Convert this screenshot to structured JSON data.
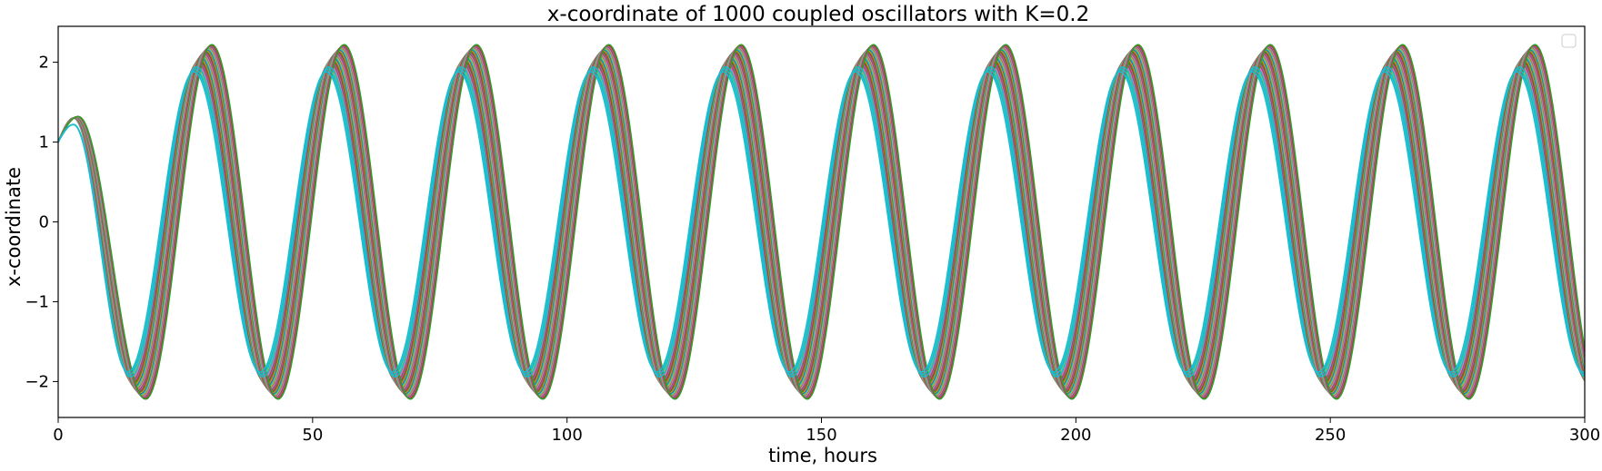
{
  "chart_data": {
    "type": "line",
    "title": "x-coordinate of 1000 coupled oscillators with K=0.2",
    "xlabel": "time, hours",
    "ylabel": "x-coordinate",
    "xlim": [
      0,
      300
    ],
    "ylim": [
      -2.45,
      2.45
    ],
    "xticks": [
      0,
      50,
      100,
      150,
      200,
      250,
      300
    ],
    "yticks": [
      -2,
      -1,
      0,
      1,
      2
    ],
    "xtick_labels": [
      "0",
      "50",
      "100",
      "150",
      "200",
      "250",
      "300"
    ],
    "ytick_labels": [
      "−2",
      "−1",
      "0",
      "1",
      "2"
    ],
    "grid": false,
    "legend": {
      "placement": "upper right",
      "entries": []
    },
    "series_description": "1000 overlapping oscillator traces; shown as a representative subset",
    "colors": [
      "#17becf",
      "#bcbd22",
      "#7f7f7f",
      "#e377c2",
      "#8c564b",
      "#9467bd",
      "#d62728",
      "#2ca02c",
      "#ff7f0e",
      "#1f77b4"
    ],
    "oscillation": {
      "initial_value": 1.0,
      "first_peak": {
        "x": 3,
        "y": 1.3
      },
      "period_hours": 26.0,
      "amplitude_range": [
        1.88,
        2.22
      ],
      "peak_times_approx": [
        27,
        53,
        79,
        105,
        131,
        157,
        183,
        209,
        235,
        261,
        287
      ],
      "trough_times_approx": [
        14,
        40,
        66,
        92,
        118,
        144,
        170,
        196,
        222,
        248,
        274
      ]
    }
  }
}
